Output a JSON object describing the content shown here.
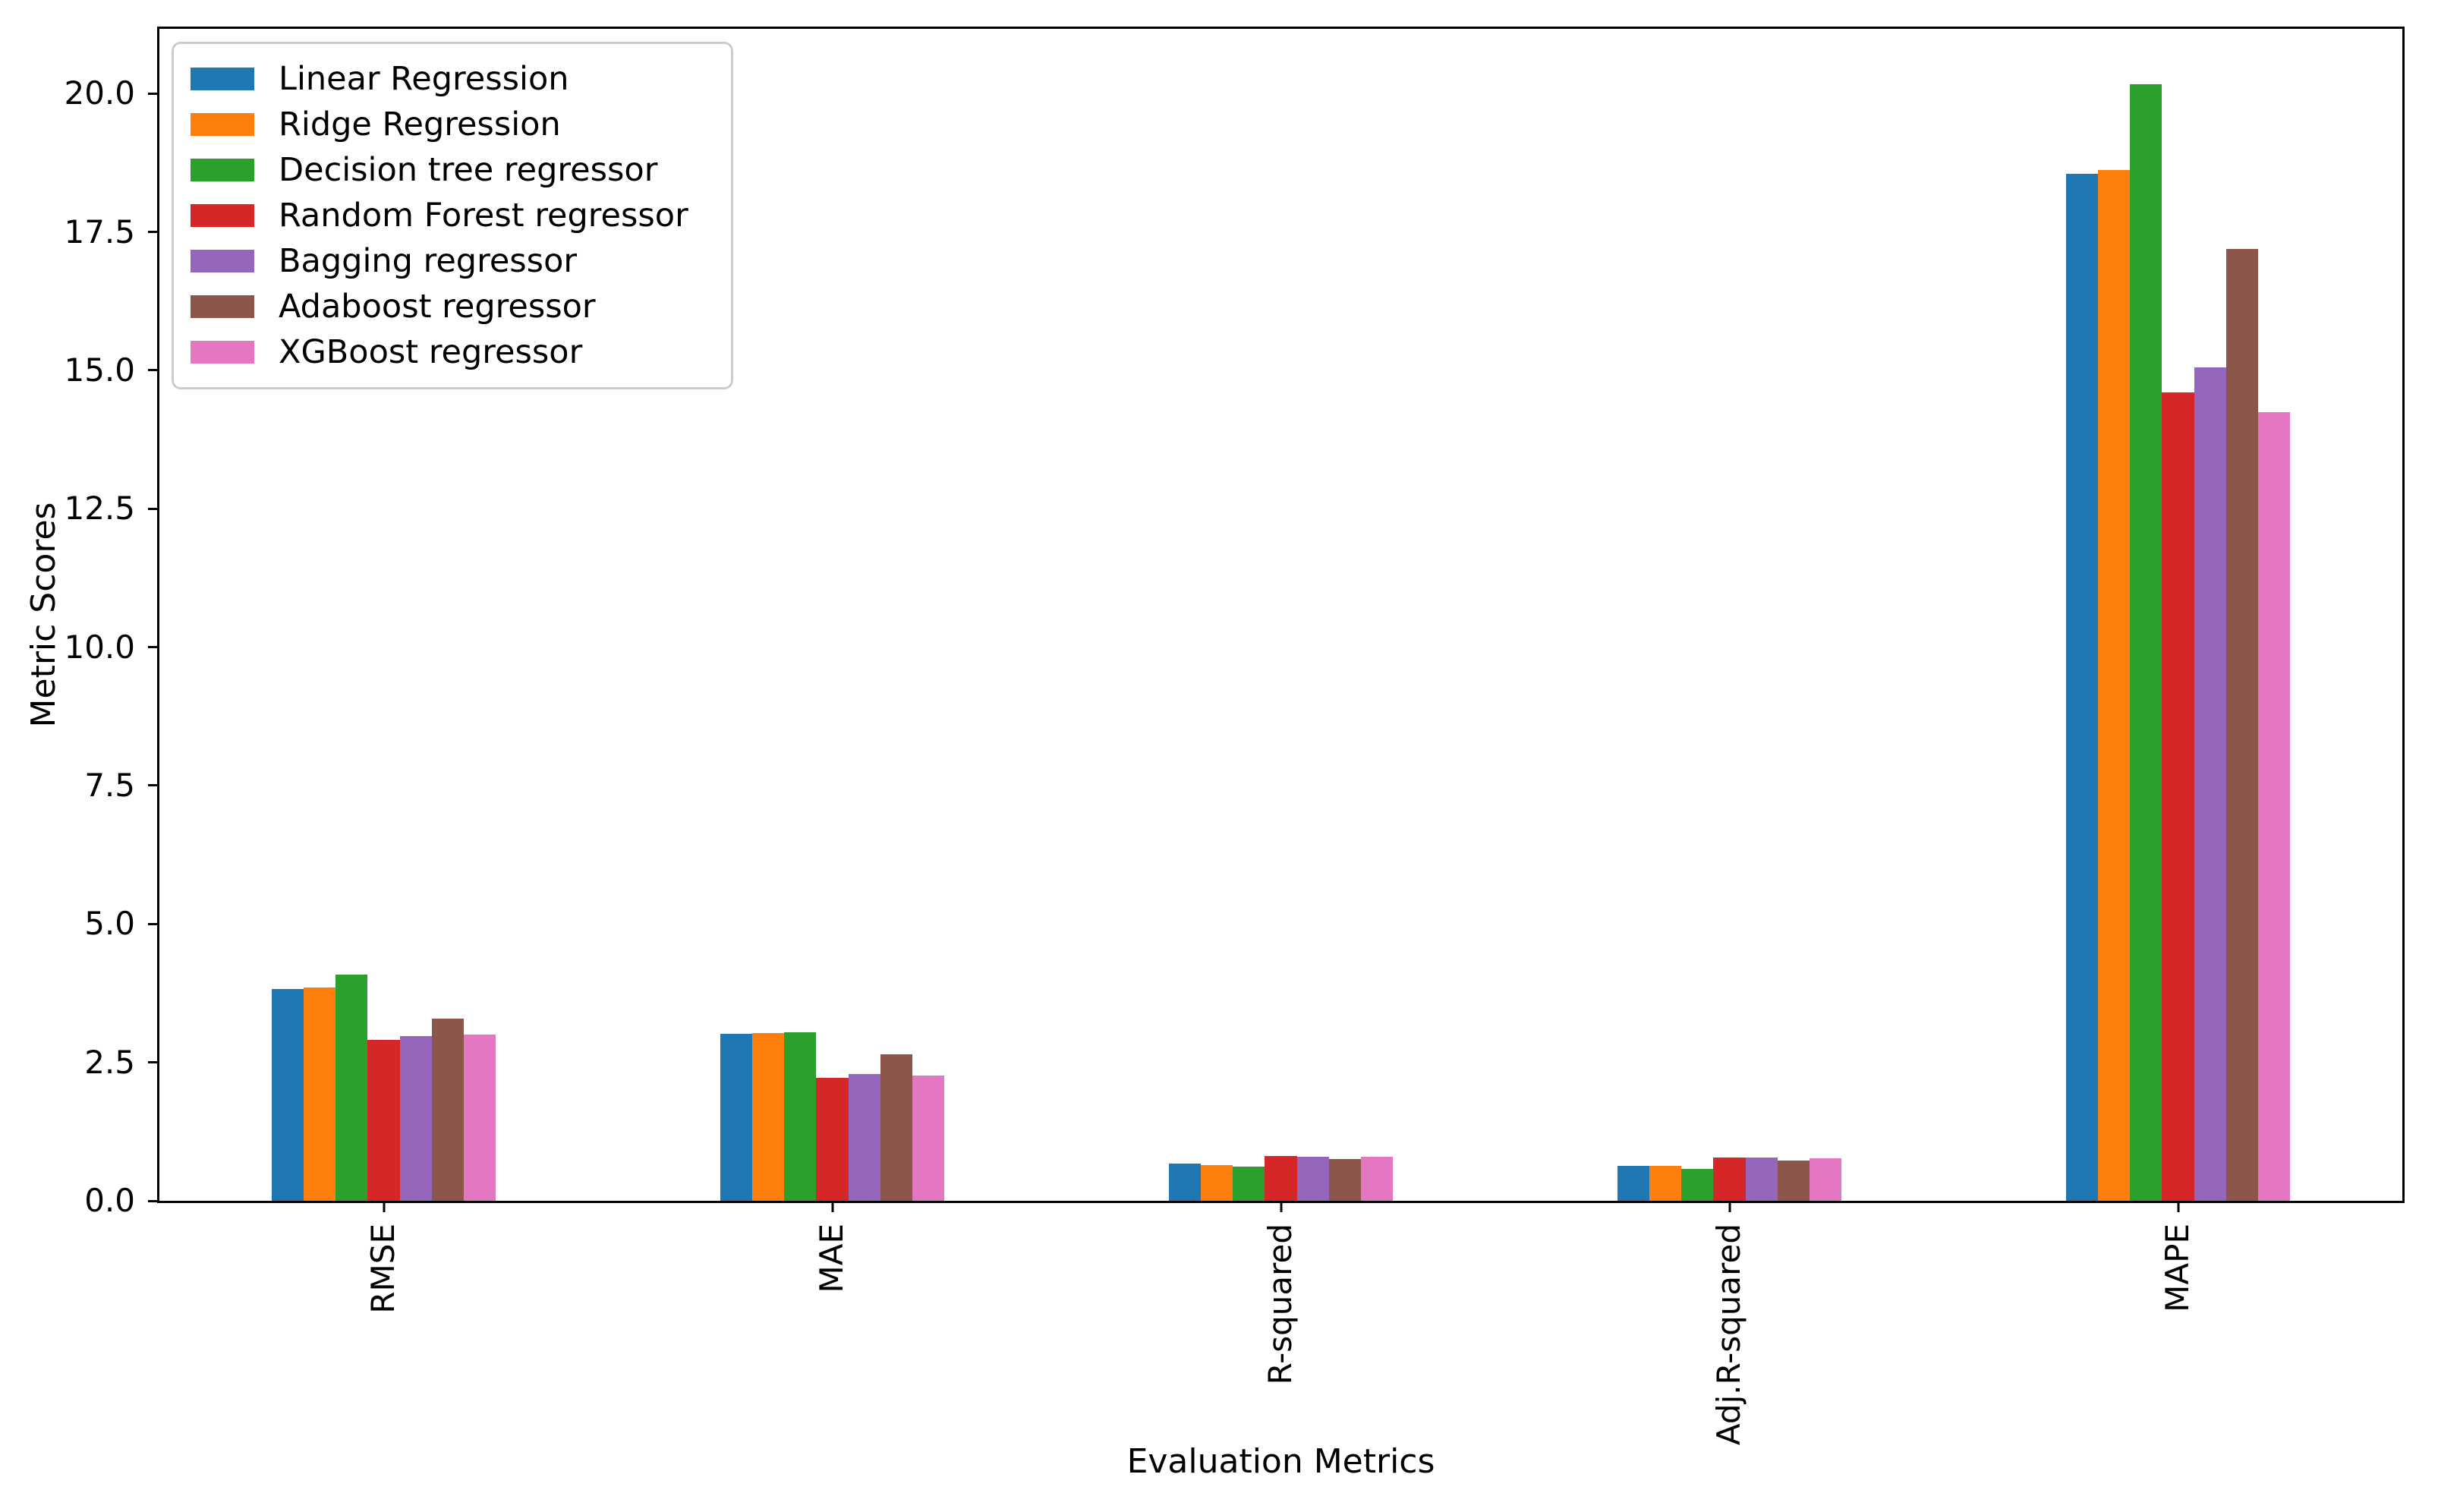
{
  "figure": {
    "background": "#ffffff",
    "text_color": "#000000"
  },
  "chart_data": {
    "type": "bar",
    "title": "",
    "xlabel": "Evaluation Metrics",
    "ylabel": "Metric Scores",
    "categories": [
      "RMSE",
      "MAE",
      "R-squared",
      "Adj.R-squared",
      "MAPE"
    ],
    "series": [
      {
        "name": "Linear Regression",
        "color": "#1f77b4",
        "values": [
          3.83,
          3.02,
          0.67,
          0.63,
          18.55
        ]
      },
      {
        "name": "Ridge Regression",
        "color": "#ff7f0e",
        "values": [
          3.85,
          3.03,
          0.65,
          0.63,
          18.62
        ]
      },
      {
        "name": "Decision tree regressor",
        "color": "#2ca02c",
        "values": [
          4.08,
          3.05,
          0.62,
          0.58,
          20.17
        ]
      },
      {
        "name": "Random Forest regressor",
        "color": "#d62728",
        "values": [
          2.91,
          2.22,
          0.81,
          0.78,
          14.6
        ]
      },
      {
        "name": "Bagging regressor",
        "color": "#9467bd",
        "values": [
          2.97,
          2.29,
          0.79,
          0.78,
          15.05
        ]
      },
      {
        "name": "Adaboost regressor",
        "color": "#8c564b",
        "values": [
          3.29,
          2.64,
          0.75,
          0.73,
          17.2
        ]
      },
      {
        "name": "XGBoost regressor",
        "color": "#e377c2",
        "values": [
          3.0,
          2.26,
          0.8,
          0.77,
          14.25
        ]
      }
    ],
    "ylim": [
      0,
      21.17
    ],
    "yticks": [
      "0.0",
      "2.5",
      "5.0",
      "7.5",
      "10.0",
      "12.5",
      "15.0",
      "17.5",
      "20.0"
    ],
    "xtick_rotation_deg": 90,
    "grid": false,
    "legend_position": "upper left",
    "bar_group_width_fraction": 0.5,
    "spine_color": "#000000",
    "legend_border_color": "#cccccc"
  }
}
